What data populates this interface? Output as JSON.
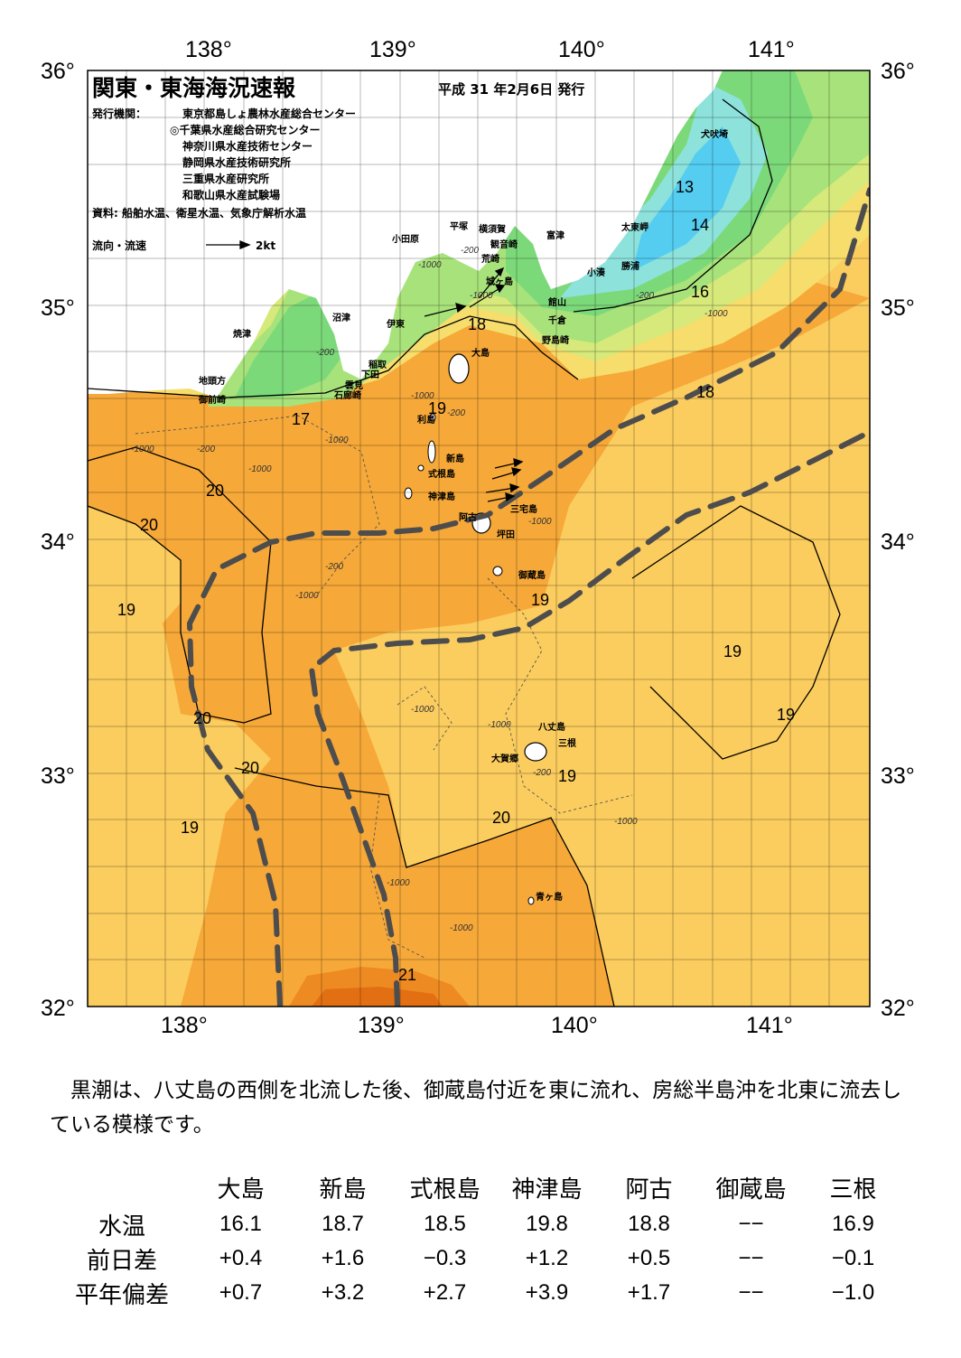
{
  "header": {
    "title": "関東・東海海況速報",
    "issue_date": "平成 31 年2月6日 発行",
    "issuer_label": "発行機関：",
    "issuers": [
      "東京都島しょ農林水産総合センター",
      "◎千葉県水産総合研究センター",
      "神奈川県水産技術センター",
      "静岡県水産技術研究所",
      "三重県水産研究所",
      "和歌山県水産試験場"
    ],
    "source": "資料: 船舶水温、衛星水温、気象庁解析水温",
    "flow_label": "流向・流速",
    "flow_scale": "2kt"
  },
  "map": {
    "lon_labels": [
      "138°",
      "139°",
      "140°",
      "141°"
    ],
    "lat_labels": [
      "36°",
      "35°",
      "34°",
      "33°",
      "32°"
    ],
    "place_names": [
      "犬吠埼",
      "太東岬",
      "勝浦",
      "小湊",
      "富津",
      "館山",
      "千倉",
      "野島崎",
      "横須賀",
      "観音崎",
      "平塚",
      "荒崎",
      "城ヶ島",
      "小田原",
      "沼津",
      "伊東",
      "稲取",
      "下田",
      "雲見",
      "石廊崎",
      "焼津",
      "地頭方",
      "御前崎",
      "大島",
      "利島",
      "新島",
      "式根島",
      "神津島",
      "阿古",
      "三宅島",
      "坪田",
      "御蔵島",
      "八丈島",
      "三根",
      "大賀郷",
      "青ヶ島"
    ],
    "isotherm_labels": [
      "13",
      "14",
      "16",
      "18",
      "18",
      "19",
      "17",
      "20",
      "20",
      "19",
      "19",
      "20",
      "19",
      "20",
      "19",
      "19",
      "19",
      "20",
      "21"
    ],
    "depth_labels": [
      "-200",
      "-1000"
    ],
    "colors": {
      "t13": "#55cdf0",
      "t14": "#8de2dc",
      "t15": "#7cd97a",
      "t16": "#a8e27a",
      "t17": "#d6e97a",
      "t18": "#f7dd6c",
      "t19": "#fbcc5e",
      "t20": "#f6a838",
      "t21": "#ee8a22",
      "t21plus": "#e26f12",
      "land": "#ffffff",
      "kuroshio_axis": "#4d4d4d"
    }
  },
  "summary": "黒潮は、八丈島の西側を北流した後、御蔵島付近を東に流れ、房総半島沖を北東に流去している模様です。",
  "observations": {
    "stations": [
      "大島",
      "新島",
      "式根島",
      "神津島",
      "阿古",
      "御蔵島",
      "三根"
    ],
    "rows": [
      {
        "label": "水温",
        "values": [
          "16.1",
          "18.7",
          "18.5",
          "19.8",
          "18.8",
          "−−",
          "16.9"
        ]
      },
      {
        "label": "前日差",
        "values": [
          "+0.4",
          "+1.6",
          "−0.3",
          "+1.2",
          "+0.5",
          "−−",
          "−0.1"
        ]
      },
      {
        "label": "平年偏差",
        "values": [
          "+0.7",
          "+3.2",
          "+2.7",
          "+3.9",
          "+1.7",
          "−−",
          "−1.0"
        ]
      }
    ]
  }
}
